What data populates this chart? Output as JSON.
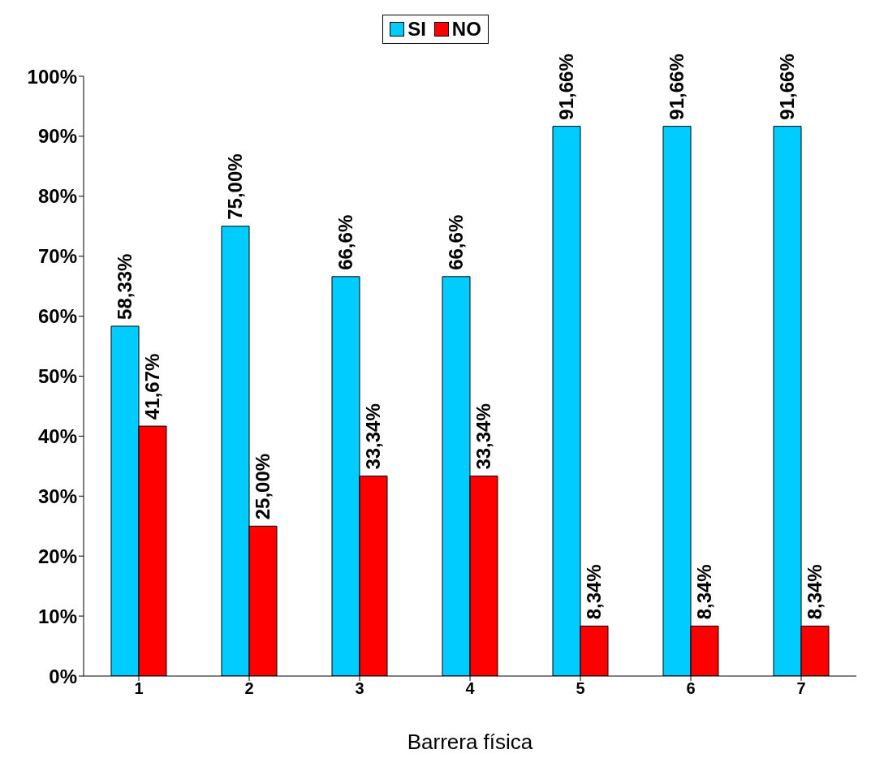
{
  "chart_data": {
    "type": "bar",
    "xlabel": "Barrera física",
    "categories": [
      "1",
      "2",
      "3",
      "4",
      "5",
      "6",
      "7"
    ],
    "series": [
      {
        "name": "SI",
        "color": "#00ccff",
        "values": [
          58.33,
          75,
          66.6,
          66.6,
          91.66,
          91.66,
          91.66
        ],
        "value_labels": [
          "58,33%",
          "75,00%",
          "66,6%",
          "66,6%",
          "91,66%",
          "91,66%",
          "91,66%"
        ]
      },
      {
        "name": "NO",
        "color": "#ff0000",
        "values": [
          41.67,
          25,
          33.34,
          33.34,
          8.34,
          8.34,
          8.34
        ],
        "value_labels": [
          "41,67%",
          "25,00%",
          "33,34%",
          "33,34%",
          "8,34%",
          "8,34%",
          "8,34%"
        ]
      }
    ],
    "ylim": [
      0,
      100
    ],
    "yticks": [
      {
        "value": 0,
        "label": "0%"
      },
      {
        "value": 10,
        "label": "10%"
      },
      {
        "value": 20,
        "label": "20%"
      },
      {
        "value": 30,
        "label": "30%"
      },
      {
        "value": 40,
        "label": "40%"
      },
      {
        "value": 50,
        "label": "50%"
      },
      {
        "value": 60,
        "label": "60%"
      },
      {
        "value": 70,
        "label": "70%"
      },
      {
        "value": 80,
        "label": "80%"
      },
      {
        "value": 90,
        "label": "90%"
      },
      {
        "value": 100,
        "label": "100%"
      }
    ],
    "grid": false,
    "legend": "top"
  }
}
